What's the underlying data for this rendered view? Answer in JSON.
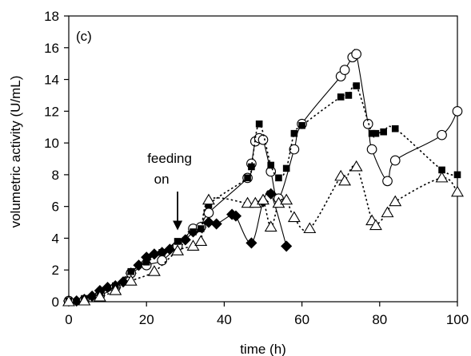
{
  "chart_data": {
    "type": "scatter",
    "panel_label": "(c)",
    "xlabel": "time (h)",
    "ylabel": "volumetric activity (U/mL)",
    "xlim": [
      0,
      100
    ],
    "ylim": [
      0,
      18
    ],
    "xticks": [
      0,
      20,
      40,
      60,
      80,
      100
    ],
    "yticks": [
      0,
      2,
      4,
      6,
      8,
      10,
      12,
      14,
      16,
      18
    ],
    "grid": false,
    "annotation": {
      "lines": [
        "feeding",
        "on"
      ],
      "x": 28,
      "y": 4.3
    },
    "series": [
      {
        "marker": "diamond-filled",
        "line": "solid",
        "x": [
          0,
          2,
          4,
          6,
          8,
          10,
          12,
          14,
          16,
          18,
          20,
          22,
          24,
          26,
          28,
          30,
          32,
          34,
          36,
          38,
          42,
          43,
          47,
          50,
          52,
          56
        ],
        "y": [
          0.05,
          0.05,
          0.15,
          0.35,
          0.7,
          0.9,
          1.0,
          1.25,
          1.8,
          2.3,
          2.8,
          3.0,
          3.1,
          3.3,
          3.6,
          3.9,
          4.4,
          4.7,
          5.0,
          4.9,
          5.5,
          5.4,
          3.7,
          6.3,
          6.8,
          3.5
        ]
      },
      {
        "marker": "circle-open",
        "line": "solid",
        "x": [
          0,
          4,
          8,
          12,
          16,
          20,
          24,
          28,
          32,
          34,
          36,
          46,
          47,
          48,
          49,
          50,
          52,
          54,
          58,
          60,
          70,
          71,
          73,
          74,
          77,
          78,
          82,
          84,
          96,
          100
        ],
        "y": [
          0.05,
          0.1,
          0.4,
          0.9,
          1.8,
          2.3,
          2.6,
          3.5,
          4.6,
          4.7,
          5.6,
          7.8,
          8.7,
          10.1,
          10.3,
          10.2,
          8.2,
          6.5,
          9.6,
          11.2,
          14.2,
          14.6,
          15.4,
          15.6,
          11.2,
          9.6,
          7.6,
          8.9,
          10.5,
          12.0
        ]
      },
      {
        "marker": "square-filled",
        "line": "dotted",
        "x": [
          0,
          4,
          8,
          12,
          16,
          20,
          24,
          28,
          32,
          34,
          36,
          46,
          47,
          49,
          52,
          54,
          56,
          58,
          60,
          70,
          72,
          74,
          78,
          79,
          81,
          84,
          96,
          100
        ],
        "y": [
          0.05,
          0.2,
          0.5,
          1.0,
          1.9,
          2.5,
          3.1,
          3.8,
          4.4,
          4.6,
          6.1,
          7.8,
          8.5,
          11.2,
          8.6,
          7.8,
          8.4,
          10.6,
          11.1,
          12.9,
          13.0,
          13.6,
          10.6,
          10.6,
          10.7,
          10.9,
          8.3,
          8.0
        ]
      },
      {
        "marker": "triangle-open",
        "line": "dotted",
        "x": [
          0,
          4,
          8,
          12,
          16,
          22,
          28,
          32,
          34,
          36,
          46,
          48,
          50,
          52,
          54,
          56,
          58,
          62,
          70,
          71,
          74,
          78,
          79,
          82,
          84,
          96,
          100
        ],
        "y": [
          0.0,
          0.05,
          0.3,
          0.7,
          1.3,
          1.9,
          3.2,
          3.5,
          3.8,
          6.4,
          6.2,
          6.2,
          6.4,
          4.7,
          6.2,
          6.4,
          5.3,
          4.6,
          7.9,
          7.6,
          8.5,
          5.1,
          4.8,
          5.6,
          6.3,
          7.8,
          6.9
        ]
      }
    ]
  }
}
